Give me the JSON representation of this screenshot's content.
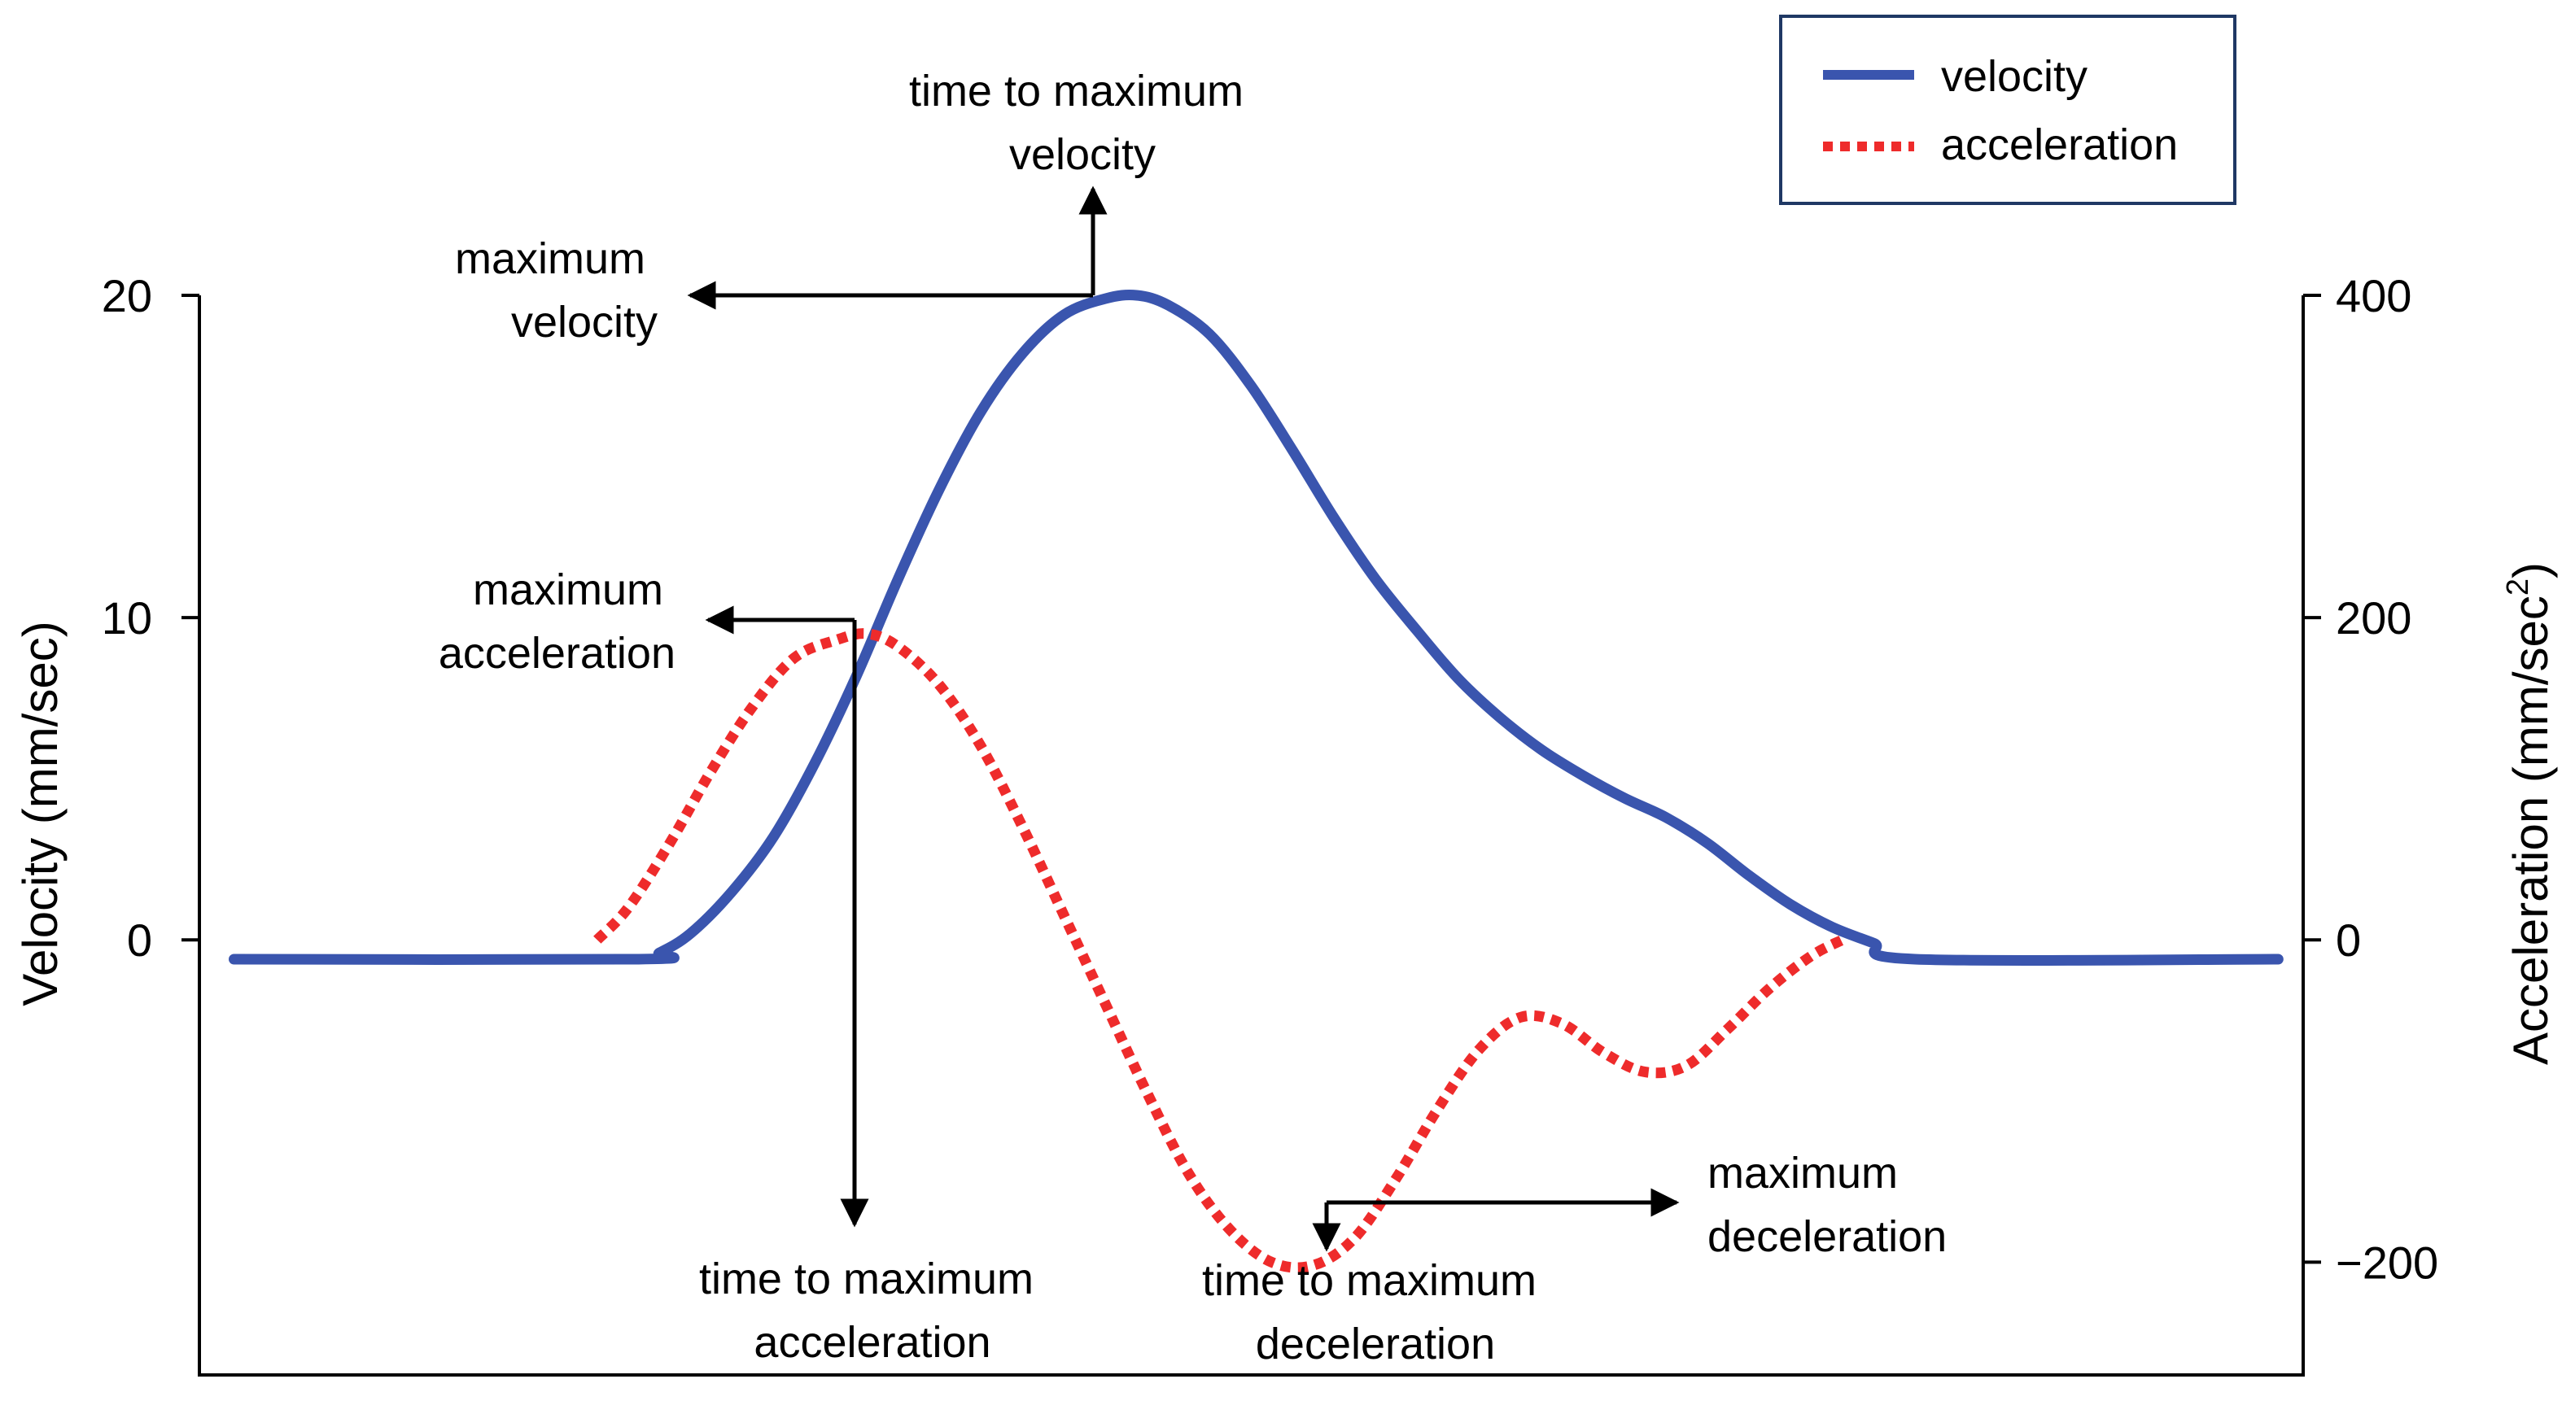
{
  "colors": {
    "velocity": "#3A55AE",
    "acceleration": "#EE2B2B",
    "axis": "#000000",
    "legend_border": "#1F3864"
  },
  "chart_data": {
    "type": "line",
    "title": "",
    "x_axis": {
      "label": "",
      "range": [
        0,
        100
      ],
      "ticks": []
    },
    "y_left": {
      "label": "Velocity (mm/sec)",
      "range": [
        -13.5,
        20
      ],
      "ticks": [
        {
          "value": 0,
          "label": "0"
        },
        {
          "value": 10,
          "label": "10"
        },
        {
          "value": 20,
          "label": "20"
        }
      ]
    },
    "y_right": {
      "label": "Acceleration (mm/sec",
      "label_superscript": "2",
      "label_close": ")",
      "range": [
        -270,
        400
      ],
      "ticks": [
        {
          "value": -200,
          "label": "−200"
        },
        {
          "value": 0,
          "label": "0"
        },
        {
          "value": 200,
          "label": "200"
        },
        {
          "value": 400,
          "label": "400"
        }
      ]
    },
    "legend": {
      "position": "top-right",
      "entries": [
        {
          "name": "velocity",
          "style": "solid"
        },
        {
          "name": "acceleration",
          "style": "dotted"
        }
      ]
    },
    "series": [
      {
        "name": "velocity",
        "axis": "left",
        "style": "solid",
        "points": [
          [
            1,
            -0.6
          ],
          [
            20.5,
            -0.6
          ],
          [
            21.5,
            -0.4
          ],
          [
            23,
            0.2
          ],
          [
            25,
            1.5
          ],
          [
            27,
            3.2
          ],
          [
            29,
            5.5
          ],
          [
            31,
            8.2
          ],
          [
            33,
            11.2
          ],
          [
            35,
            14
          ],
          [
            37,
            16.4
          ],
          [
            39,
            18.2
          ],
          [
            41,
            19.4
          ],
          [
            43,
            19.9
          ],
          [
            44.5,
            20
          ],
          [
            46,
            19.7
          ],
          [
            48,
            18.8
          ],
          [
            50,
            17.2
          ],
          [
            52,
            15.2
          ],
          [
            54,
            13.1
          ],
          [
            56,
            11.2
          ],
          [
            58,
            9.6
          ],
          [
            60,
            8.1
          ],
          [
            62,
            6.9
          ],
          [
            64,
            5.9
          ],
          [
            66,
            5.1
          ],
          [
            68,
            4.4
          ],
          [
            70,
            3.8
          ],
          [
            72,
            3
          ],
          [
            74,
            2
          ],
          [
            76,
            1.1
          ],
          [
            78,
            0.4
          ],
          [
            80,
            -0.1
          ],
          [
            82,
            -0.6
          ],
          [
            99.5,
            -0.6
          ]
        ]
      },
      {
        "name": "acceleration",
        "axis": "right",
        "style": "dotted",
        "points": [
          [
            18.5,
            0
          ],
          [
            20,
            20
          ],
          [
            22,
            60
          ],
          [
            24,
            105
          ],
          [
            26,
            145
          ],
          [
            28,
            175
          ],
          [
            30,
            186
          ],
          [
            31.5,
            190
          ],
          [
            33,
            182
          ],
          [
            35,
            158
          ],
          [
            37,
            120
          ],
          [
            39,
            70
          ],
          [
            41,
            15
          ],
          [
            43,
            -40
          ],
          [
            45,
            -95
          ],
          [
            47,
            -145
          ],
          [
            49,
            -180
          ],
          [
            51,
            -200
          ],
          [
            53,
            -202
          ],
          [
            55,
            -185
          ],
          [
            57,
            -148
          ],
          [
            59,
            -105
          ],
          [
            61,
            -68
          ],
          [
            63,
            -48
          ],
          [
            65,
            -52
          ],
          [
            67,
            -70
          ],
          [
            69,
            -82
          ],
          [
            71,
            -78
          ],
          [
            73,
            -55
          ],
          [
            75,
            -30
          ],
          [
            77,
            -10
          ],
          [
            78.5,
            0
          ]
        ]
      }
    ],
    "annotations": [
      {
        "id": "time-to-max-velocity",
        "lines": [
          "time to maximum",
          "velocity"
        ]
      },
      {
        "id": "max-velocity",
        "lines": [
          "maximum",
          "velocity"
        ]
      },
      {
        "id": "max-acceleration",
        "lines": [
          "maximum",
          "acceleration"
        ]
      },
      {
        "id": "time-to-max-acceleration",
        "lines": [
          "time to maximum",
          "acceleration"
        ]
      },
      {
        "id": "time-to-max-deceleration",
        "lines": [
          "time to maximum",
          "deceleration"
        ]
      },
      {
        "id": "max-deceleration",
        "lines": [
          "maximum",
          "deceleration"
        ]
      }
    ]
  }
}
